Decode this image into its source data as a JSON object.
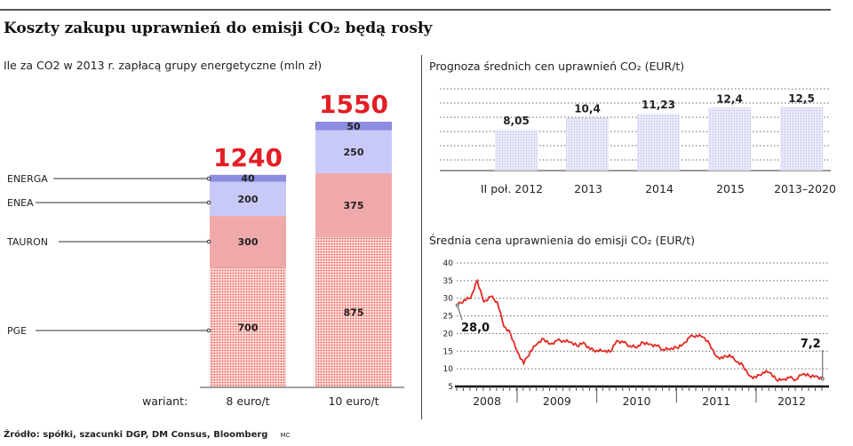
{
  "title": "Koszty zakupu uprawnień do emisji CO₂ będą rosły",
  "footer": "Źródło: spółki, szacunki DGP, DM Consus, Bloomberg",
  "author": "MC",
  "colors": {
    "PGE": "#e8483c",
    "TAURON": "#f0a9aa",
    "ENEA": "#c9c9f7",
    "ENERGA": "#8c8ce0",
    "total": "#e31e24",
    "forecast": "#c4c4ee",
    "line": "#e32a22"
  },
  "chart_data": [
    {
      "type": "bar",
      "stacked": true,
      "title": "Ile za CO2 w 2013 r. zapłacą grupy energetyczne (mln zł)",
      "xlabel": "wariant:",
      "categories": [
        "8 euro/t",
        "10 euro/t"
      ],
      "totals": [
        1240,
        1550
      ],
      "series": [
        {
          "name": "PGE",
          "values": [
            700,
            875
          ]
        },
        {
          "name": "TAURON",
          "values": [
            300,
            375
          ]
        },
        {
          "name": "ENEA",
          "values": [
            200,
            250
          ]
        },
        {
          "name": "ENERGA",
          "values": [
            40,
            50
          ]
        }
      ]
    },
    {
      "type": "bar",
      "title": "Prognoza średnich cen uprawnień CO₂ (EUR/t)",
      "categories": [
        "II poł. 2012",
        "2013",
        "2014",
        "2015",
        "2013–2020"
      ],
      "values": [
        8.05,
        10.4,
        11.23,
        12.4,
        12.5
      ],
      "labels": [
        "8,05",
        "10,4",
        "11,23",
        "12,4",
        "12,5"
      ],
      "grid": true
    },
    {
      "type": "line",
      "title": "Średnia cena uprawnienia do emisji CO₂  (EUR/t)",
      "ylim": [
        5,
        40
      ],
      "yticks": [
        "5",
        "10",
        "15",
        "20",
        "25",
        "30",
        "35",
        "40"
      ],
      "xticks": [
        "2008",
        "2009",
        "2010",
        "2011",
        "2012"
      ],
      "grid": true,
      "annotations": [
        {
          "x": "2008-04",
          "text": "28,0"
        },
        {
          "x": "2012-11",
          "text": "7,2"
        }
      ],
      "x": [
        "2008-04",
        "2008-05",
        "2008-06",
        "2008-07",
        "2008-08",
        "2008-09",
        "2008-10",
        "2008-11",
        "2008-12",
        "2009-01",
        "2009-02",
        "2009-03",
        "2009-04",
        "2009-05",
        "2009-06",
        "2009-07",
        "2009-08",
        "2009-09",
        "2009-10",
        "2009-11",
        "2009-12",
        "2010-01",
        "2010-02",
        "2010-03",
        "2010-04",
        "2010-05",
        "2010-06",
        "2010-07",
        "2010-08",
        "2010-09",
        "2010-10",
        "2010-11",
        "2010-12",
        "2011-01",
        "2011-02",
        "2011-03",
        "2011-04",
        "2011-05",
        "2011-06",
        "2011-07",
        "2011-08",
        "2011-09",
        "2011-10",
        "2011-11",
        "2011-12",
        "2012-01",
        "2012-02",
        "2012-03",
        "2012-04",
        "2012-05",
        "2012-06",
        "2012-07",
        "2012-08",
        "2012-09",
        "2012-10",
        "2012-11"
      ],
      "y": [
        28,
        29.5,
        30,
        35,
        29,
        30.5,
        29,
        22,
        20,
        15,
        11.5,
        15,
        17,
        18.5,
        17,
        18,
        18,
        17.5,
        16.5,
        17.5,
        15.5,
        15.2,
        15,
        14.8,
        18,
        17.5,
        16.5,
        16,
        17.5,
        17,
        16.5,
        15.5,
        15.5,
        16,
        17,
        19,
        19.5,
        19,
        17,
        13.5,
        13,
        14,
        12,
        11,
        8,
        7.5,
        9,
        9,
        7,
        7,
        7.5,
        7,
        8.5,
        8,
        8,
        7.2
      ]
    }
  ]
}
